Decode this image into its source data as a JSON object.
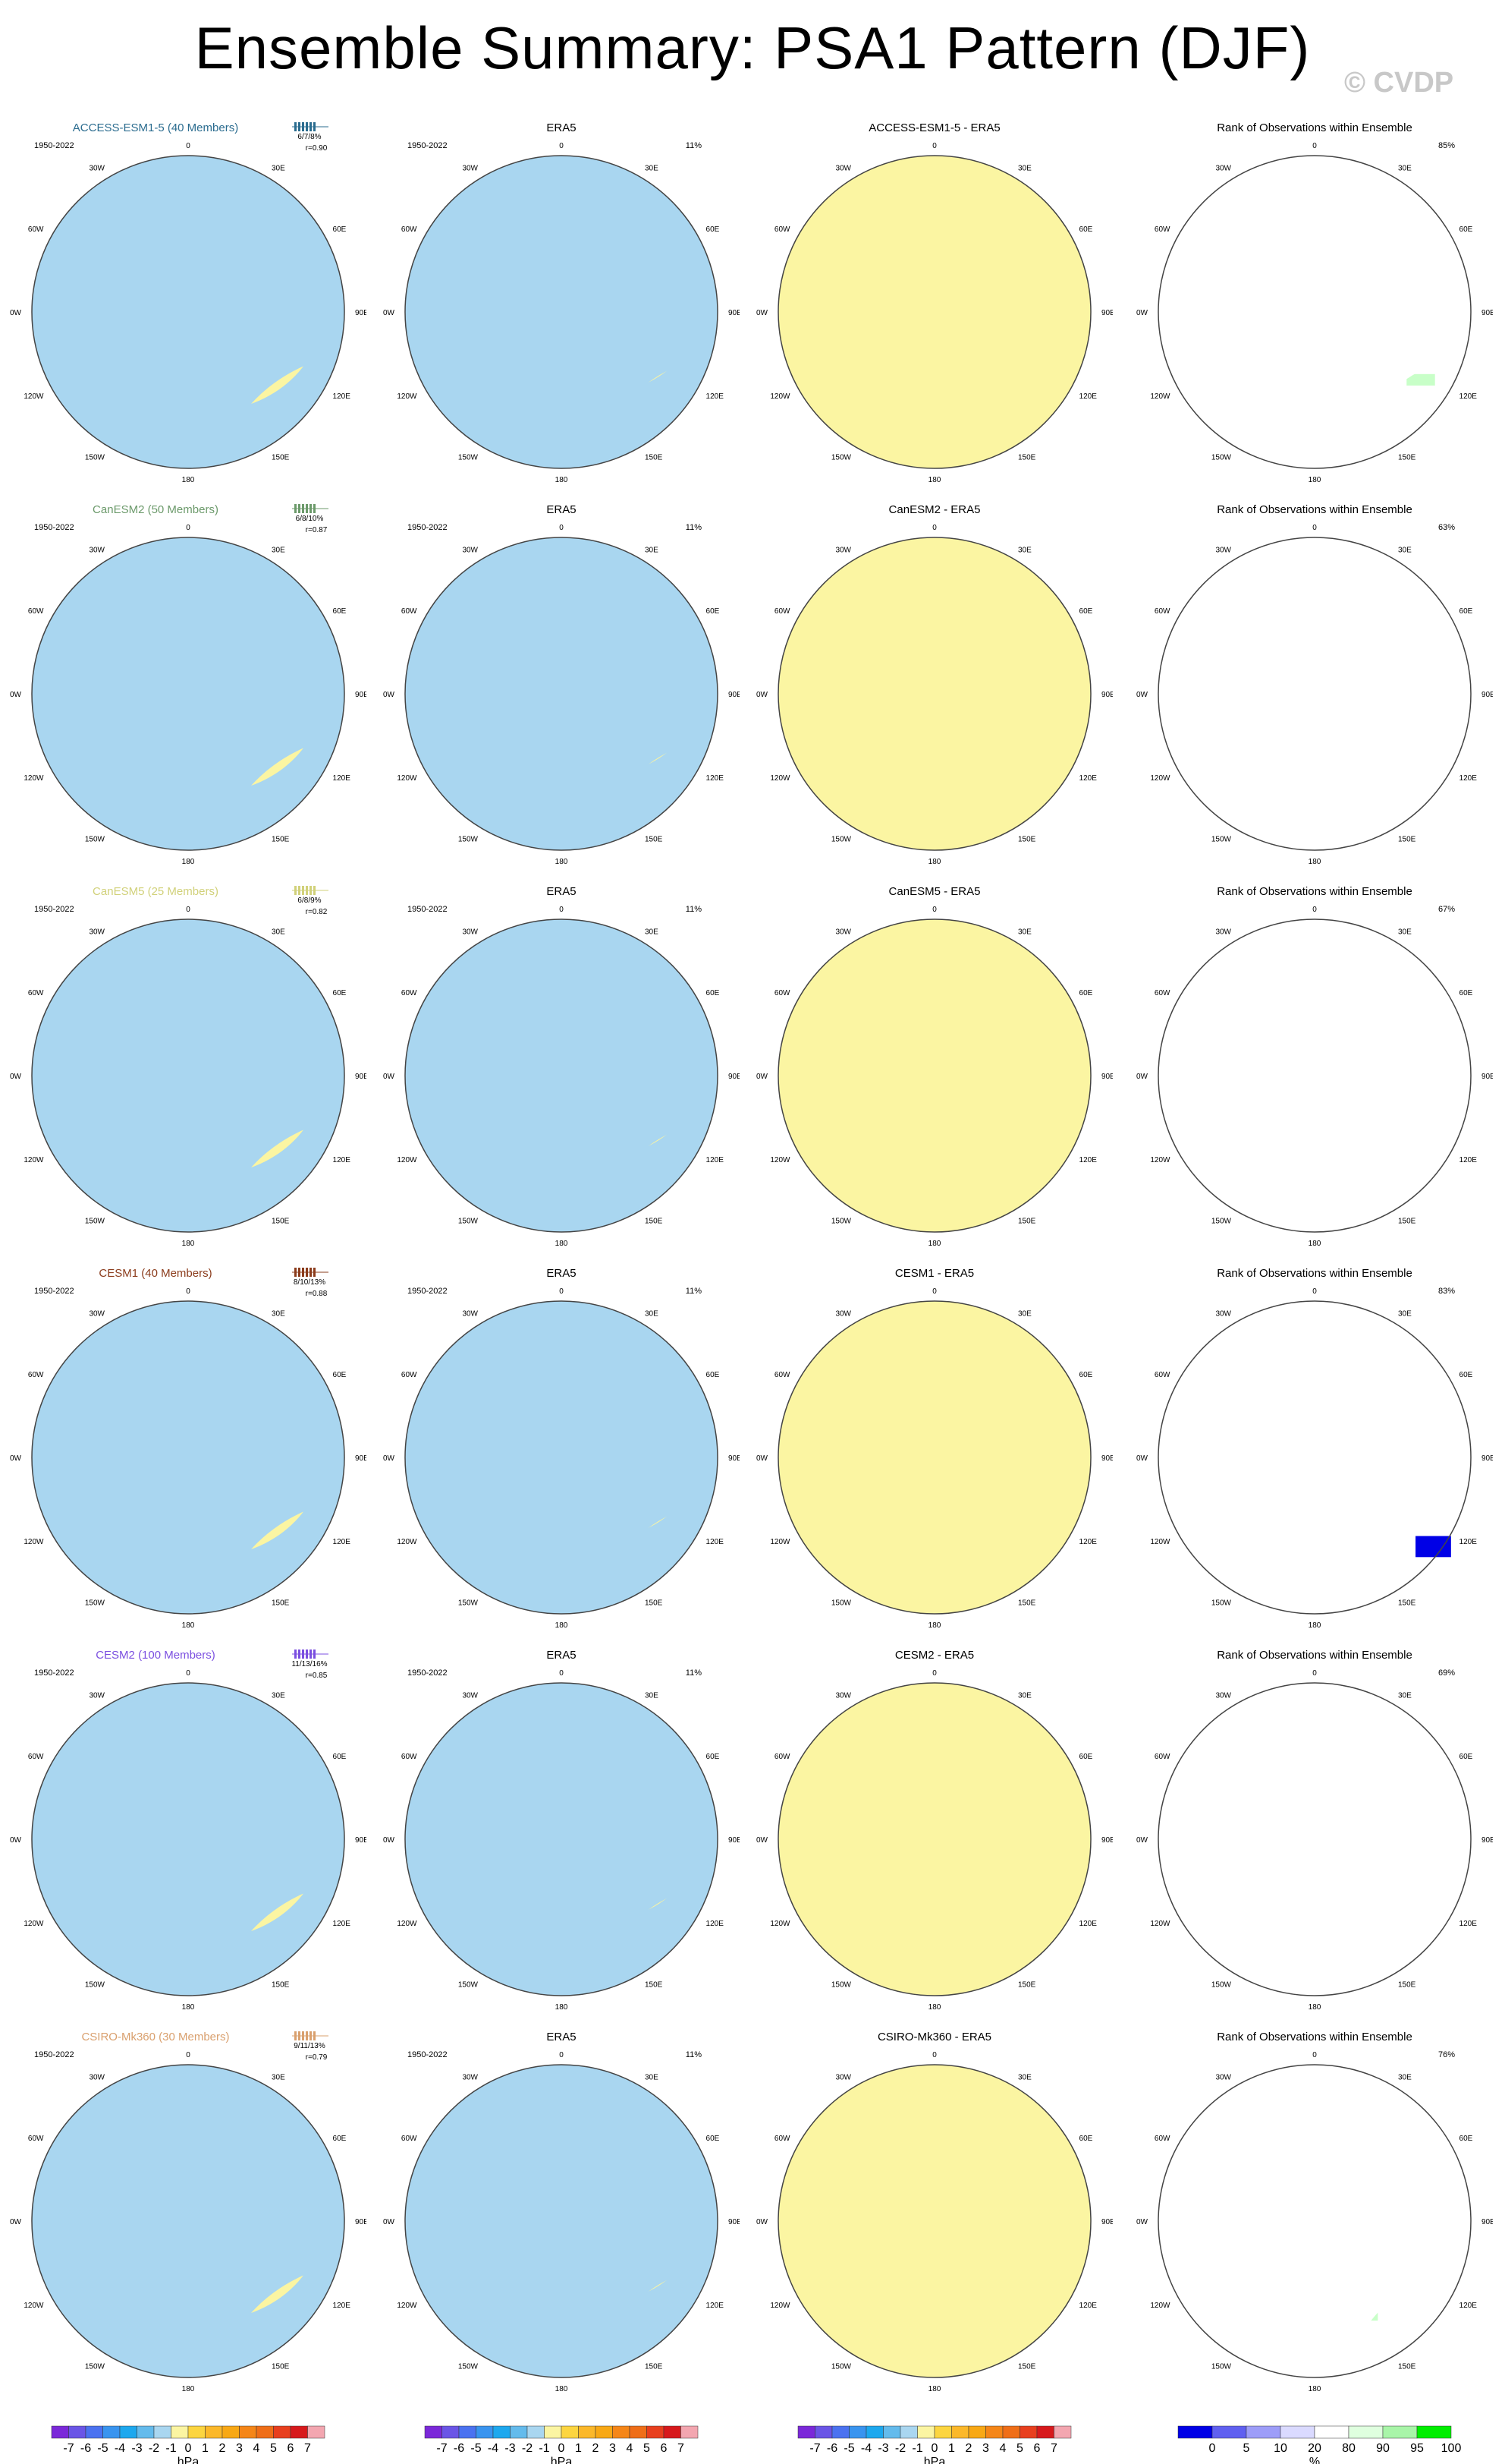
{
  "header": {
    "title": "Ensemble Summary: PSA1 Pattern (DJF)",
    "watermark": "© CVDP"
  },
  "labels": {
    "obs_name": "ERA5",
    "rank_title": "Rank of Observations within Ensemble",
    "period": "1950-2022",
    "obs_variance": "11%",
    "units": "hPa",
    "rank_units": "%"
  },
  "map_labels": [
    "0",
    "30E",
    "60E",
    "90E",
    "120E",
    "150E",
    "180",
    "150W",
    "120W",
    "90W",
    "60W",
    "30W"
  ],
  "colors": {
    "positive_fill": "#fbf5a2",
    "negative_fill": "#a9d6f0",
    "pos_contour_1": "#fcd540",
    "pos_contour_2": "#f8a815",
    "pos_contour_3": "#ef6e18",
    "neg_contour_1": "#64bbec",
    "neg_contour_2": "#1da8ee",
    "rank_low": "#0000e6",
    "rank_mid_low": "#c8c8ff",
    "rank_high": "#c8ffc8",
    "rank_top": "#00ee00"
  },
  "rows": [
    {
      "model": "ACCESS-ESM1-5 (40 Members)",
      "model_color": "#2b6c8f",
      "pct_stats": "6/7/8%",
      "pattern_corr": "r=0.90",
      "diff_title": "ACCESS-ESM1-5 - ERA5",
      "rank_pct": "85%"
    },
    {
      "model": "CanESM2 (50 Members)",
      "model_color": "#6c9a6b",
      "pct_stats": "6/8/10%",
      "pattern_corr": "r=0.87",
      "diff_title": "CanESM2 - ERA5",
      "rank_pct": "63%"
    },
    {
      "model": "CanESM5 (25 Members)",
      "model_color": "#d1d17a",
      "pct_stats": "6/8/9%",
      "pattern_corr": "r=0.82",
      "diff_title": "CanESM5 - ERA5",
      "rank_pct": "67%"
    },
    {
      "model": "CESM1 (40 Members)",
      "model_color": "#8b3c1c",
      "pct_stats": "8/10/13%",
      "pattern_corr": "r=0.88",
      "diff_title": "CESM1 - ERA5",
      "rank_pct": "83%"
    },
    {
      "model": "CESM2 (100 Members)",
      "model_color": "#7b4fe0",
      "pct_stats": "11/13/16%",
      "pattern_corr": "r=0.85",
      "diff_title": "CESM2 - ERA5",
      "rank_pct": "69%"
    },
    {
      "model": "CSIRO-Mk360 (30 Members)",
      "model_color": "#d9a06e",
      "pct_stats": "9/11/13%",
      "pattern_corr": "r=0.79",
      "diff_title": "CSIRO-Mk360 - ERA5",
      "rank_pct": "76%"
    }
  ],
  "chart_data": [
    {
      "type": "heatmap",
      "description": "Polar stereographic maps of DJF PSA1 sea level pressure pattern regressions for six model ensembles vs ERA5 (1950-2022)",
      "units": "hPa",
      "colorbar_levels": [
        -7,
        -6,
        -5,
        -4,
        -3,
        -2,
        -1,
        0,
        1,
        2,
        3,
        4,
        5,
        6,
        7
      ],
      "colorbar_tick_labels": [
        "-7",
        "-6",
        "-5",
        "-4",
        "-3",
        "-2",
        "-1",
        "0",
        "1",
        "2",
        "3",
        "4",
        "5",
        "6",
        "7"
      ],
      "colorbar_colors": [
        "#7b28d9",
        "#6a55e6",
        "#4b72f0",
        "#3994ef",
        "#1da8ee",
        "#64bbec",
        "#a9d6f0",
        "#fbf5a2",
        "#fcd540",
        "#fbb82a",
        "#f8a815",
        "#f58618",
        "#ef6e18",
        "#e83f1e",
        "#d7191c",
        "#f3a6b0"
      ]
    },
    {
      "type": "heatmap",
      "description": "Rank of observations within ensemble",
      "units": "%",
      "colorbar_tick_labels": [
        "0",
        "5",
        "10",
        "20",
        "80",
        "90",
        "95",
        "100"
      ],
      "colorbar_colors": [
        "#0000e6",
        "#6060f0",
        "#9d9df8",
        "#dadaff",
        "#ffffff",
        "#dfffdf",
        "#a8f5a8",
        "#00ee00"
      ]
    }
  ]
}
